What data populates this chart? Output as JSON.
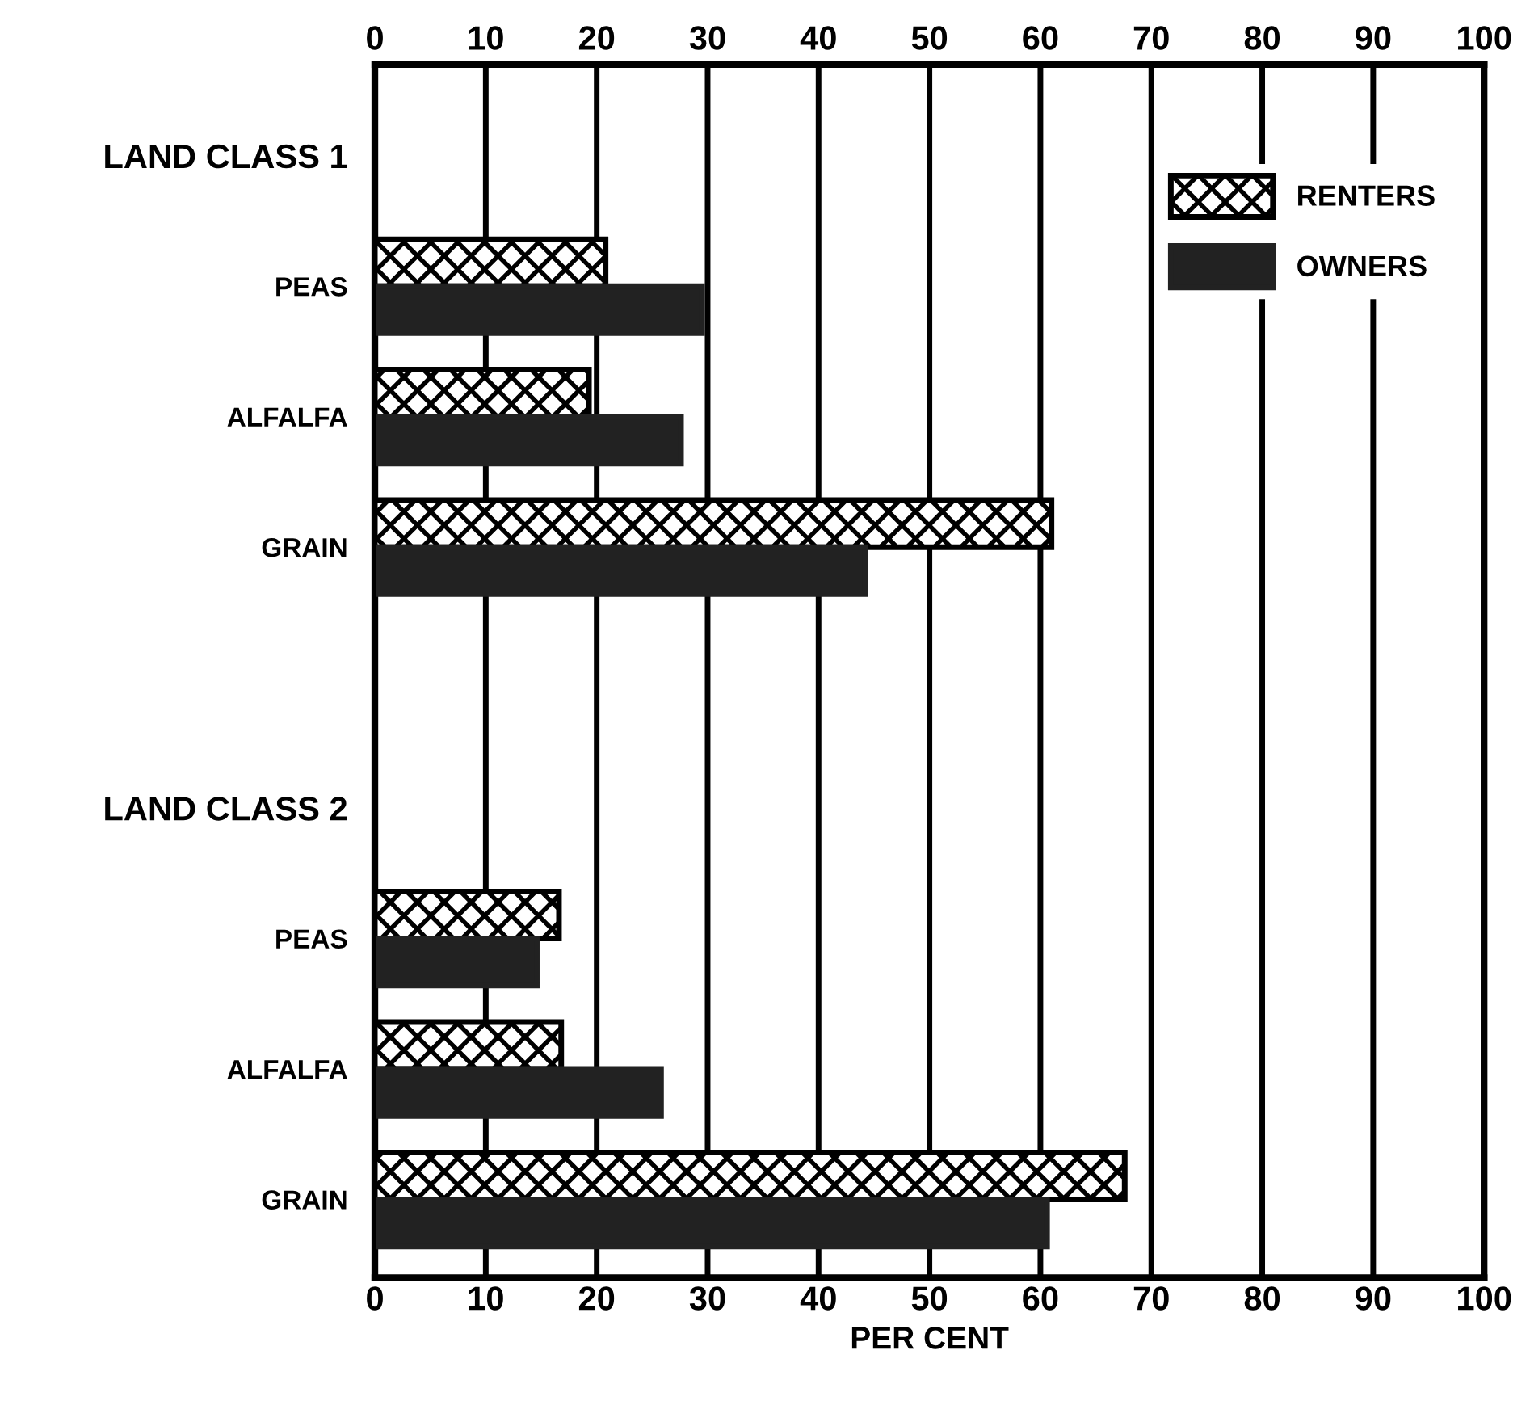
{
  "chart_data": {
    "type": "bar",
    "orientation": "horizontal",
    "xlabel": "PER CENT",
    "categories": [
      "LAND CLASS 1",
      "PEAS",
      "ALFALFA",
      "GRAIN",
      null,
      "LAND CLASS 2",
      "PEAS",
      "ALFALFA",
      "GRAIN"
    ],
    "series": [
      {
        "name": "RENTERS",
        "color": "#000000",
        "values": [
          null,
          20.8,
          19.3,
          61.0,
          null,
          null,
          16.6,
          16.8,
          67.6
        ]
      },
      {
        "name": "OWNERS",
        "color": "#222222",
        "values": [
          null,
          29.5,
          27.6,
          44.2,
          null,
          null,
          14.6,
          25.8,
          60.6
        ]
      }
    ],
    "xlim": [
      0,
      100
    ],
    "xticks": [
      0,
      10,
      20,
      30,
      40,
      50,
      60,
      70,
      80,
      90,
      100
    ],
    "x2lim": [
      0,
      100
    ],
    "x2ticks": [
      0,
      10,
      20,
      30,
      40,
      50,
      60,
      70,
      80,
      90,
      100
    ],
    "grid": "x",
    "legend": "top right"
  }
}
